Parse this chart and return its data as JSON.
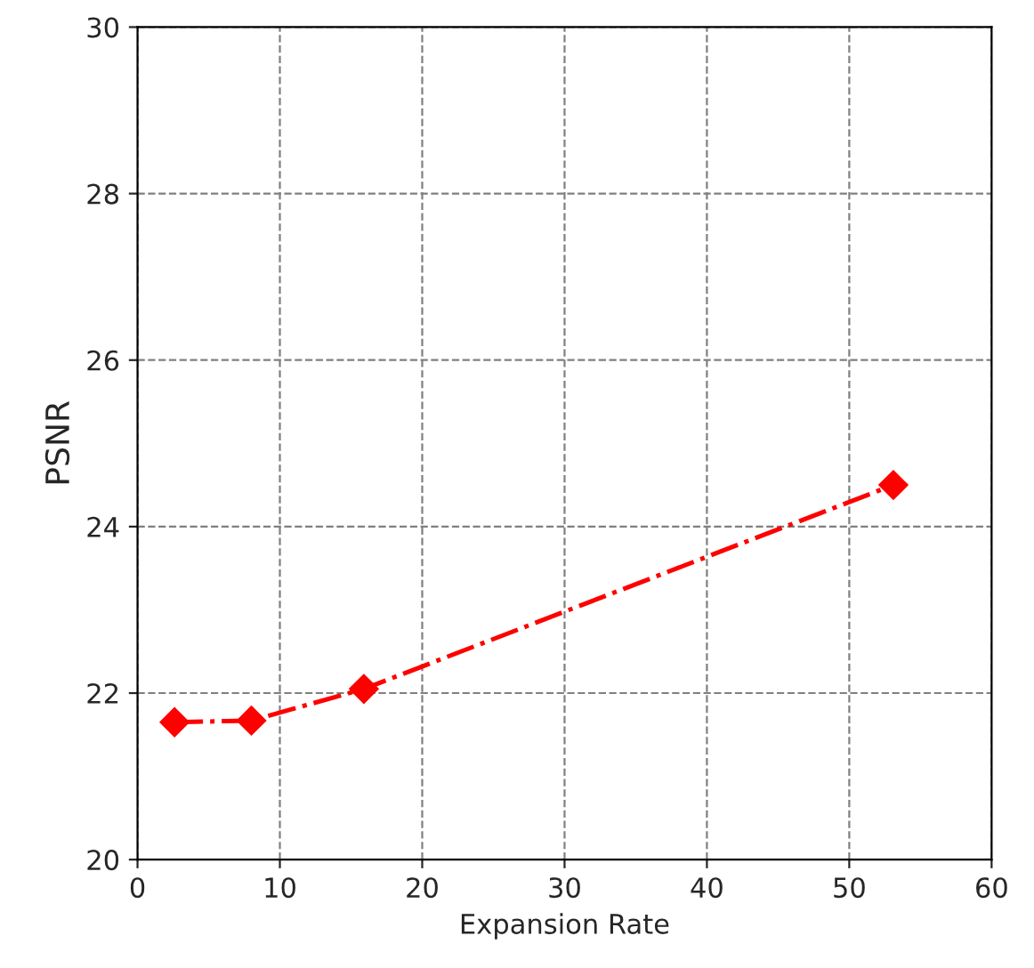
{
  "chart_data": {
    "type": "line",
    "xlabel": "Expansion Rate",
    "ylabel": "PSNR",
    "x": [
      2.6,
      8,
      15.9,
      53.1
    ],
    "series": [
      {
        "color": "#ff0000",
        "values": [
          21.65,
          21.67,
          22.05,
          24.5
        ]
      }
    ],
    "xlim": [
      0,
      60
    ],
    "xticks": [
      0,
      10,
      20,
      30,
      40,
      50,
      60
    ],
    "ylim": [
      20,
      30
    ],
    "yticks": [
      20,
      22,
      24,
      26,
      28,
      30
    ],
    "grid": true,
    "marker": "diamond",
    "line_style": "dashdot"
  }
}
